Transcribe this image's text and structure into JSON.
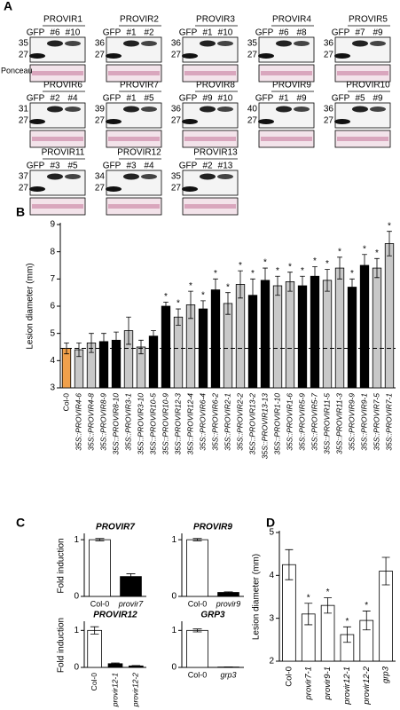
{
  "panel_labels": [
    "A",
    "B",
    "C",
    "D"
  ],
  "ponceau_label": "Ponceau",
  "blots": [
    {
      "title": "PROVIR1",
      "lanes": [
        "GFP",
        "#6",
        "#10"
      ],
      "markers": [
        "35",
        "27"
      ]
    },
    {
      "title": "PROVIR2",
      "lanes": [
        "GFP",
        "#1",
        "#2"
      ],
      "markers": [
        "36",
        "27"
      ]
    },
    {
      "title": "PROVIR3",
      "lanes": [
        "GFP",
        "#1",
        "#10"
      ],
      "markers": [
        "36",
        "27"
      ]
    },
    {
      "title": "PROVIR4",
      "lanes": [
        "GFP",
        "#6",
        "#8"
      ],
      "markers": [
        "35",
        "27"
      ]
    },
    {
      "title": "PROVIR5",
      "lanes": [
        "GFP",
        "#7",
        "#9"
      ],
      "markers": [
        "36",
        "27"
      ]
    },
    {
      "title": "PROVIR6",
      "lanes": [
        "GFP",
        "#2",
        "#4"
      ],
      "markers": [
        "31",
        "27"
      ]
    },
    {
      "title": "PROVIR7",
      "lanes": [
        "GFP",
        "#1",
        "#5"
      ],
      "markers": [
        "39",
        "27"
      ]
    },
    {
      "title": "PROVIR8",
      "lanes": [
        "GFP",
        "#9",
        "#10"
      ],
      "markers": [
        "36",
        "27"
      ]
    },
    {
      "title": "PROVIR9",
      "lanes": [
        "GFP",
        "#1",
        "#9"
      ],
      "markers": [
        "40",
        "27"
      ]
    },
    {
      "title": "PROVIR10",
      "lanes": [
        "GFP",
        "#5",
        "#9"
      ],
      "markers": [
        "36",
        "27"
      ]
    },
    {
      "title": "PROVIR11",
      "lanes": [
        "GFP",
        "#3",
        "#5"
      ],
      "markers": [
        "37",
        "27"
      ]
    },
    {
      "title": "PROVIR12",
      "lanes": [
        "GFP",
        "#3",
        "#4"
      ],
      "markers": [
        "34",
        "27"
      ]
    },
    {
      "title": "PROVIR13",
      "lanes": [
        "GFP",
        "#2",
        "#13"
      ],
      "markers": [
        "35",
        "27"
      ]
    }
  ],
  "chart_data": [
    {
      "type": "bar",
      "ylabel": "Lesion diameter (mm)",
      "categories": [
        "Col-0",
        "35S::PROVIR4-6",
        "35S::PROVIR4-8",
        "35S::PROVIR8-9",
        "35S::PROVIR8-10",
        "35S::PROVIR3-1",
        "35S::PROVIR3-10",
        "35S::PROVIR10-5",
        "35S::PROVIR10-9",
        "35S::PROVIR12-3",
        "35S::PROVIR12-4",
        "35S::PROVIR6-4",
        "35S::PROVIR6-2",
        "35S::PROVIR2-1",
        "35S::PROVIR2-2",
        "35S::PROVIR13-2",
        "35S::PROVIR13-13",
        "35S::PROVIR1-10",
        "35S::PROVIR1-6",
        "35S::PROVIR5-9",
        "35S::PROVIR5-7",
        "35S::PROVIR11-5",
        "35S::PROVIR11-3",
        "35S::PROVIR9-9",
        "35S::PROVIR9-1",
        "35S::PROVIR7-5",
        "35S::PROVIR7-1"
      ],
      "values": [
        4.45,
        4.4,
        4.65,
        4.7,
        4.75,
        5.1,
        4.5,
        4.9,
        6.0,
        5.6,
        6.05,
        5.9,
        6.6,
        6.1,
        6.8,
        6.4,
        6.95,
        6.75,
        6.9,
        6.75,
        7.1,
        6.95,
        7.4,
        6.7,
        7.5,
        7.4,
        8.3
      ],
      "errors": [
        0.2,
        0.25,
        0.35,
        0.3,
        0.3,
        0.5,
        0.25,
        0.2,
        0.15,
        0.3,
        0.5,
        0.3,
        0.4,
        0.4,
        0.5,
        0.6,
        0.45,
        0.35,
        0.35,
        0.35,
        0.35,
        0.4,
        0.4,
        0.3,
        0.4,
        0.35,
        0.45
      ],
      "colors": [
        "#f0a04b",
        "#c8c8c8",
        "#c8c8c8",
        "#000000",
        "#000000",
        "#c8c8c8",
        "#c8c8c8",
        "#000000",
        "#000000",
        "#c8c8c8",
        "#c8c8c8",
        "#000000",
        "#000000",
        "#c8c8c8",
        "#c8c8c8",
        "#000000",
        "#000000",
        "#c8c8c8",
        "#c8c8c8",
        "#000000",
        "#000000",
        "#c8c8c8",
        "#c8c8c8",
        "#000000",
        "#000000",
        "#c8c8c8",
        "#c8c8c8"
      ],
      "significance": [
        null,
        null,
        null,
        null,
        null,
        null,
        null,
        null,
        "*",
        "*",
        "*",
        "*",
        "*",
        "*",
        "*",
        "*",
        "*",
        "*",
        "*",
        "*",
        "*",
        "*",
        "*",
        "*",
        "*",
        "*",
        "*"
      ],
      "hline": 4.45,
      "ylim": [
        3,
        9
      ],
      "yticks": [
        3,
        4,
        5,
        6,
        7,
        8,
        9
      ]
    },
    {
      "type": "bar",
      "title": "PROVIR7",
      "ylabel": "Fold induction",
      "categories": [
        "Col-0",
        "provir7"
      ],
      "values": [
        1.0,
        0.35
      ],
      "errors": [
        0.02,
        0.05
      ],
      "colors": [
        "#ffffff",
        "#000000"
      ],
      "ylim": [
        0,
        1.08
      ],
      "yticks": [
        0,
        1
      ]
    },
    {
      "type": "bar",
      "title": "PROVIR9",
      "categories": [
        "Col-0",
        "provir9"
      ],
      "values": [
        1.0,
        0.07
      ],
      "errors": [
        0.02,
        0.01
      ],
      "colors": [
        "#ffffff",
        "#000000"
      ],
      "ylim": [
        0,
        1.08
      ],
      "yticks": [
        0,
        1
      ]
    },
    {
      "type": "bar",
      "title": "PROVIR12",
      "ylabel": "Fold induction",
      "categories": [
        "Col-0",
        "provir12-1",
        "provir12-2"
      ],
      "values": [
        1.0,
        0.1,
        0.04
      ],
      "errors": [
        0.1,
        0.02,
        0.01
      ],
      "colors": [
        "#ffffff",
        "#000000",
        "#000000"
      ],
      "ylim": [
        0,
        1.2
      ],
      "yticks": [
        0,
        1
      ]
    },
    {
      "type": "bar",
      "title": "GRP3",
      "categories": [
        "Col-0",
        "grp3"
      ],
      "values": [
        1.0,
        0.01
      ],
      "errors": [
        0.04,
        0.005
      ],
      "colors": [
        "#ffffff",
        "#000000"
      ],
      "ylim": [
        0,
        1.2
      ],
      "yticks": [
        0,
        1
      ]
    },
    {
      "type": "bar",
      "ylabel": "Lesion diameter (mm)",
      "categories": [
        "Col-0",
        "provir7-1",
        "provir9-1",
        "provir12-1",
        "provir12-2",
        "grp3"
      ],
      "values": [
        4.25,
        3.1,
        3.3,
        2.62,
        2.95,
        4.1
      ],
      "errors": [
        0.35,
        0.25,
        0.18,
        0.18,
        0.22,
        0.32
      ],
      "colors": [
        "#ffffff",
        "#ffffff",
        "#ffffff",
        "#ffffff",
        "#ffffff",
        "#ffffff"
      ],
      "significance": [
        null,
        "*",
        "*",
        "*",
        "*",
        null
      ],
      "ylim": [
        2,
        5
      ],
      "yticks": [
        2,
        3,
        4,
        5
      ]
    }
  ]
}
